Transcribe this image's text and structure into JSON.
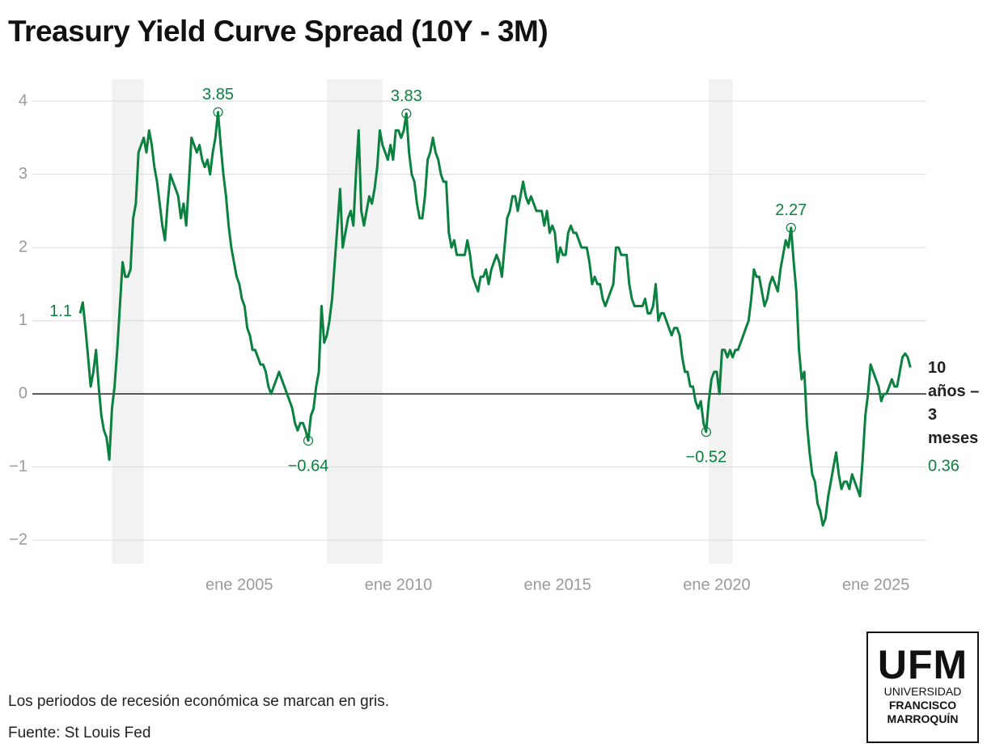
{
  "chart_data": {
    "type": "line",
    "title": "Treasury Yield Curve Spread (10Y - 3M)",
    "x": [
      "2000-01",
      "2000-02",
      "2000-03",
      "2000-04",
      "2000-05",
      "2000-06",
      "2000-07",
      "2000-08",
      "2000-09",
      "2000-10",
      "2000-11",
      "2000-12",
      "2001-01",
      "2001-02",
      "2001-03",
      "2001-04",
      "2001-05",
      "2001-06",
      "2001-07",
      "2001-08",
      "2001-09",
      "2001-10",
      "2001-11",
      "2001-12",
      "2002-01",
      "2002-02",
      "2002-03",
      "2002-04",
      "2002-05",
      "2002-06",
      "2002-07",
      "2002-08",
      "2002-09",
      "2002-10",
      "2002-11",
      "2002-12",
      "2003-01",
      "2003-02",
      "2003-03",
      "2003-04",
      "2003-05",
      "2003-06",
      "2003-07",
      "2003-08",
      "2003-09",
      "2003-10",
      "2003-11",
      "2003-12",
      "2004-01",
      "2004-02",
      "2004-03",
      "2004-04",
      "2004-05",
      "2004-06",
      "2004-07",
      "2004-08",
      "2004-09",
      "2004-10",
      "2004-11",
      "2004-12",
      "2005-01",
      "2005-02",
      "2005-03",
      "2005-04",
      "2005-05",
      "2005-06",
      "2005-07",
      "2005-08",
      "2005-09",
      "2005-10",
      "2005-11",
      "2005-12",
      "2006-01",
      "2006-02",
      "2006-03",
      "2006-04",
      "2006-05",
      "2006-06",
      "2006-07",
      "2006-08",
      "2006-09",
      "2006-10",
      "2006-11",
      "2006-12",
      "2007-01",
      "2007-02",
      "2007-03",
      "2007-04",
      "2007-05",
      "2007-06",
      "2007-07",
      "2007-08",
      "2007-09",
      "2007-10",
      "2007-11",
      "2007-12",
      "2008-01",
      "2008-02",
      "2008-03",
      "2008-04",
      "2008-05",
      "2008-06",
      "2008-07",
      "2008-08",
      "2008-09",
      "2008-10",
      "2008-11",
      "2008-12",
      "2009-01",
      "2009-02",
      "2009-03",
      "2009-04",
      "2009-05",
      "2009-06",
      "2009-07",
      "2009-08",
      "2009-09",
      "2009-10",
      "2009-11",
      "2009-12",
      "2010-01",
      "2010-02",
      "2010-03",
      "2010-04",
      "2010-05",
      "2010-06",
      "2010-07",
      "2010-08",
      "2010-09",
      "2010-10",
      "2010-11",
      "2010-12",
      "2011-01",
      "2011-02",
      "2011-03",
      "2011-04",
      "2011-05",
      "2011-06",
      "2011-07",
      "2011-08",
      "2011-09",
      "2011-10",
      "2011-11",
      "2011-12",
      "2012-01",
      "2012-02",
      "2012-03",
      "2012-04",
      "2012-05",
      "2012-06",
      "2012-07",
      "2012-08",
      "2012-09",
      "2012-10",
      "2012-11",
      "2012-12",
      "2013-01",
      "2013-02",
      "2013-03",
      "2013-04",
      "2013-05",
      "2013-06",
      "2013-07",
      "2013-08",
      "2013-09",
      "2013-10",
      "2013-11",
      "2013-12",
      "2014-01",
      "2014-02",
      "2014-03",
      "2014-04",
      "2014-05",
      "2014-06",
      "2014-07",
      "2014-08",
      "2014-09",
      "2014-10",
      "2014-11",
      "2014-12",
      "2015-01",
      "2015-02",
      "2015-03",
      "2015-04",
      "2015-05",
      "2015-06",
      "2015-07",
      "2015-08",
      "2015-09",
      "2015-10",
      "2015-11",
      "2015-12",
      "2016-01",
      "2016-02",
      "2016-03",
      "2016-04",
      "2016-05",
      "2016-06",
      "2016-07",
      "2016-08",
      "2016-09",
      "2016-10",
      "2016-11",
      "2016-12",
      "2017-01",
      "2017-02",
      "2017-03",
      "2017-04",
      "2017-05",
      "2017-06",
      "2017-07",
      "2017-08",
      "2017-09",
      "2017-10",
      "2017-11",
      "2017-12",
      "2018-01",
      "2018-02",
      "2018-03",
      "2018-04",
      "2018-05",
      "2018-06",
      "2018-07",
      "2018-08",
      "2018-09",
      "2018-10",
      "2018-11",
      "2018-12",
      "2019-01",
      "2019-02",
      "2019-03",
      "2019-04",
      "2019-05",
      "2019-06",
      "2019-07",
      "2019-08",
      "2019-09",
      "2019-10",
      "2019-11",
      "2019-12",
      "2020-01",
      "2020-02",
      "2020-03",
      "2020-04",
      "2020-05",
      "2020-06",
      "2020-07",
      "2020-08",
      "2020-09",
      "2020-10",
      "2020-11",
      "2020-12",
      "2021-01",
      "2021-02",
      "2021-03",
      "2021-04",
      "2021-05",
      "2021-06",
      "2021-07",
      "2021-08",
      "2021-09",
      "2021-10",
      "2021-11",
      "2021-12",
      "2022-01",
      "2022-02",
      "2022-03",
      "2022-04",
      "2022-05",
      "2022-06",
      "2022-07",
      "2022-08",
      "2022-09",
      "2022-10",
      "2022-11",
      "2022-12",
      "2023-01",
      "2023-02",
      "2023-03",
      "2023-04",
      "2023-05",
      "2023-06",
      "2023-07",
      "2023-08",
      "2023-09",
      "2023-10",
      "2023-11",
      "2023-12",
      "2024-01",
      "2024-02",
      "2024-03",
      "2024-04",
      "2024-05",
      "2024-06",
      "2024-07",
      "2024-08",
      "2024-09",
      "2024-10",
      "2024-11",
      "2024-12",
      "2025-01",
      "2025-02",
      "2025-03",
      "2025-04",
      "2025-05",
      "2025-06",
      "2025-07",
      "2025-08",
      "2025-09",
      "2025-10",
      "2025-11",
      "2025-12",
      "2026-01",
      "2026-02"
    ],
    "series": [
      {
        "name": "10 años – 3 meses",
        "color": "#0b8140",
        "values": [
          1.1,
          1.25,
          0.9,
          0.5,
          0.1,
          0.3,
          0.6,
          0.1,
          -0.3,
          -0.5,
          -0.6,
          -0.9,
          -0.2,
          0.1,
          0.6,
          1.2,
          1.8,
          1.6,
          1.6,
          1.7,
          2.4,
          2.6,
          3.3,
          3.4,
          3.5,
          3.3,
          3.6,
          3.4,
          3.1,
          2.9,
          2.6,
          2.3,
          2.1,
          2.6,
          3.0,
          2.9,
          2.8,
          2.7,
          2.4,
          2.6,
          2.3,
          2.9,
          3.5,
          3.4,
          3.3,
          3.4,
          3.2,
          3.1,
          3.2,
          3.0,
          3.3,
          3.5,
          3.85,
          3.4,
          3.0,
          2.7,
          2.3,
          2.0,
          1.8,
          1.6,
          1.5,
          1.3,
          1.2,
          0.9,
          0.8,
          0.6,
          0.6,
          0.5,
          0.4,
          0.4,
          0.3,
          0.1,
          0.0,
          0.1,
          0.2,
          0.3,
          0.2,
          0.1,
          0.0,
          -0.1,
          -0.2,
          -0.4,
          -0.5,
          -0.4,
          -0.4,
          -0.5,
          -0.64,
          -0.3,
          -0.2,
          0.1,
          0.3,
          1.2,
          0.7,
          0.8,
          1.0,
          1.3,
          1.8,
          2.3,
          2.8,
          2.0,
          2.2,
          2.4,
          2.5,
          2.3,
          3.0,
          3.6,
          2.5,
          2.3,
          2.5,
          2.7,
          2.6,
          2.8,
          3.1,
          3.6,
          3.4,
          3.3,
          3.2,
          3.4,
          3.2,
          3.6,
          3.6,
          3.5,
          3.6,
          3.83,
          3.3,
          3.0,
          2.9,
          2.6,
          2.4,
          2.4,
          2.7,
          3.2,
          3.3,
          3.5,
          3.3,
          3.2,
          3.0,
          2.9,
          2.9,
          2.2,
          2.0,
          2.1,
          1.9,
          1.9,
          1.9,
          1.9,
          2.1,
          1.9,
          1.6,
          1.5,
          1.4,
          1.6,
          1.6,
          1.7,
          1.5,
          1.7,
          1.8,
          1.9,
          1.8,
          1.6,
          2.0,
          2.4,
          2.5,
          2.7,
          2.7,
          2.5,
          2.7,
          2.9,
          2.7,
          2.6,
          2.7,
          2.6,
          2.5,
          2.5,
          2.5,
          2.3,
          2.5,
          2.2,
          2.3,
          2.2,
          1.8,
          2.0,
          1.9,
          1.9,
          2.2,
          2.3,
          2.2,
          2.2,
          2.1,
          2.0,
          2.0,
          2.0,
          1.8,
          1.5,
          1.6,
          1.5,
          1.5,
          1.3,
          1.2,
          1.3,
          1.4,
          1.5,
          2.0,
          2.0,
          1.9,
          1.9,
          1.9,
          1.5,
          1.3,
          1.2,
          1.2,
          1.2,
          1.2,
          1.3,
          1.1,
          1.1,
          1.2,
          1.5,
          1.0,
          1.1,
          1.1,
          1.0,
          0.9,
          0.8,
          0.9,
          0.9,
          0.8,
          0.5,
          0.3,
          0.3,
          0.1,
          0.1,
          -0.1,
          -0.2,
          -0.1,
          -0.4,
          -0.52,
          -0.1,
          0.2,
          0.3,
          0.3,
          0.0,
          0.6,
          0.6,
          0.5,
          0.6,
          0.5,
          0.6,
          0.6,
          0.7,
          0.8,
          0.9,
          1.0,
          1.3,
          1.7,
          1.6,
          1.6,
          1.4,
          1.2,
          1.3,
          1.5,
          1.6,
          1.5,
          1.4,
          1.7,
          1.9,
          2.1,
          2.0,
          2.27,
          1.8,
          1.4,
          0.6,
          0.2,
          0.3,
          -0.4,
          -0.8,
          -1.1,
          -1.2,
          -1.5,
          -1.6,
          -1.8,
          -1.7,
          -1.4,
          -1.2,
          -1.0,
          -0.8,
          -1.1,
          -1.3,
          -1.2,
          -1.2,
          -1.3,
          -1.1,
          -1.2,
          -1.3,
          -1.4,
          -0.9,
          -0.3,
          0.0,
          0.4,
          0.3,
          0.2,
          0.1,
          -0.1,
          0.0,
          0.0,
          0.1,
          0.2,
          0.1,
          0.1,
          0.3,
          0.5,
          0.55,
          0.5,
          0.36
        ]
      }
    ],
    "annotations": [
      {
        "x": "2004-05",
        "value": 3.85
      },
      {
        "x": "2007-03",
        "value": -0.64,
        "label": "−0.64"
      },
      {
        "x": "2010-04",
        "value": 3.83
      },
      {
        "x": "2019-09",
        "value": -0.52,
        "label": "−0.52"
      },
      {
        "x": "2022-05",
        "value": 2.27
      }
    ],
    "recessions": [
      {
        "start": "2001-01",
        "end": "2002-01"
      },
      {
        "start": "2007-10",
        "end": "2009-07"
      },
      {
        "start": "2019-10",
        "end": "2020-07"
      }
    ],
    "xlim": [
      "1998-07",
      "2026-08"
    ],
    "xticks": [
      {
        "value": "2005-01",
        "label": "ene 2005"
      },
      {
        "value": "2010-01",
        "label": "ene 2010"
      },
      {
        "value": "2015-01",
        "label": "ene 2015"
      },
      {
        "value": "2020-01",
        "label": "ene 2020"
      },
      {
        "value": "2025-01",
        "label": "ene 2025"
      }
    ],
    "ylim": [
      -2.32,
      4.3
    ],
    "yticks": [
      {
        "value": -2,
        "label": "−2"
      },
      {
        "value": -1,
        "label": "−1"
      },
      0,
      1,
      2,
      3,
      4
    ],
    "grid": true,
    "notes": [
      "Los periodos de recesión económica se marcan en gris.",
      "Fuente: St Louis Fed"
    ]
  },
  "logo": {
    "mark": "UFM",
    "lines": [
      "UNIVERSIDAD",
      "FRANCISCO",
      "MARROQUÍN"
    ]
  }
}
